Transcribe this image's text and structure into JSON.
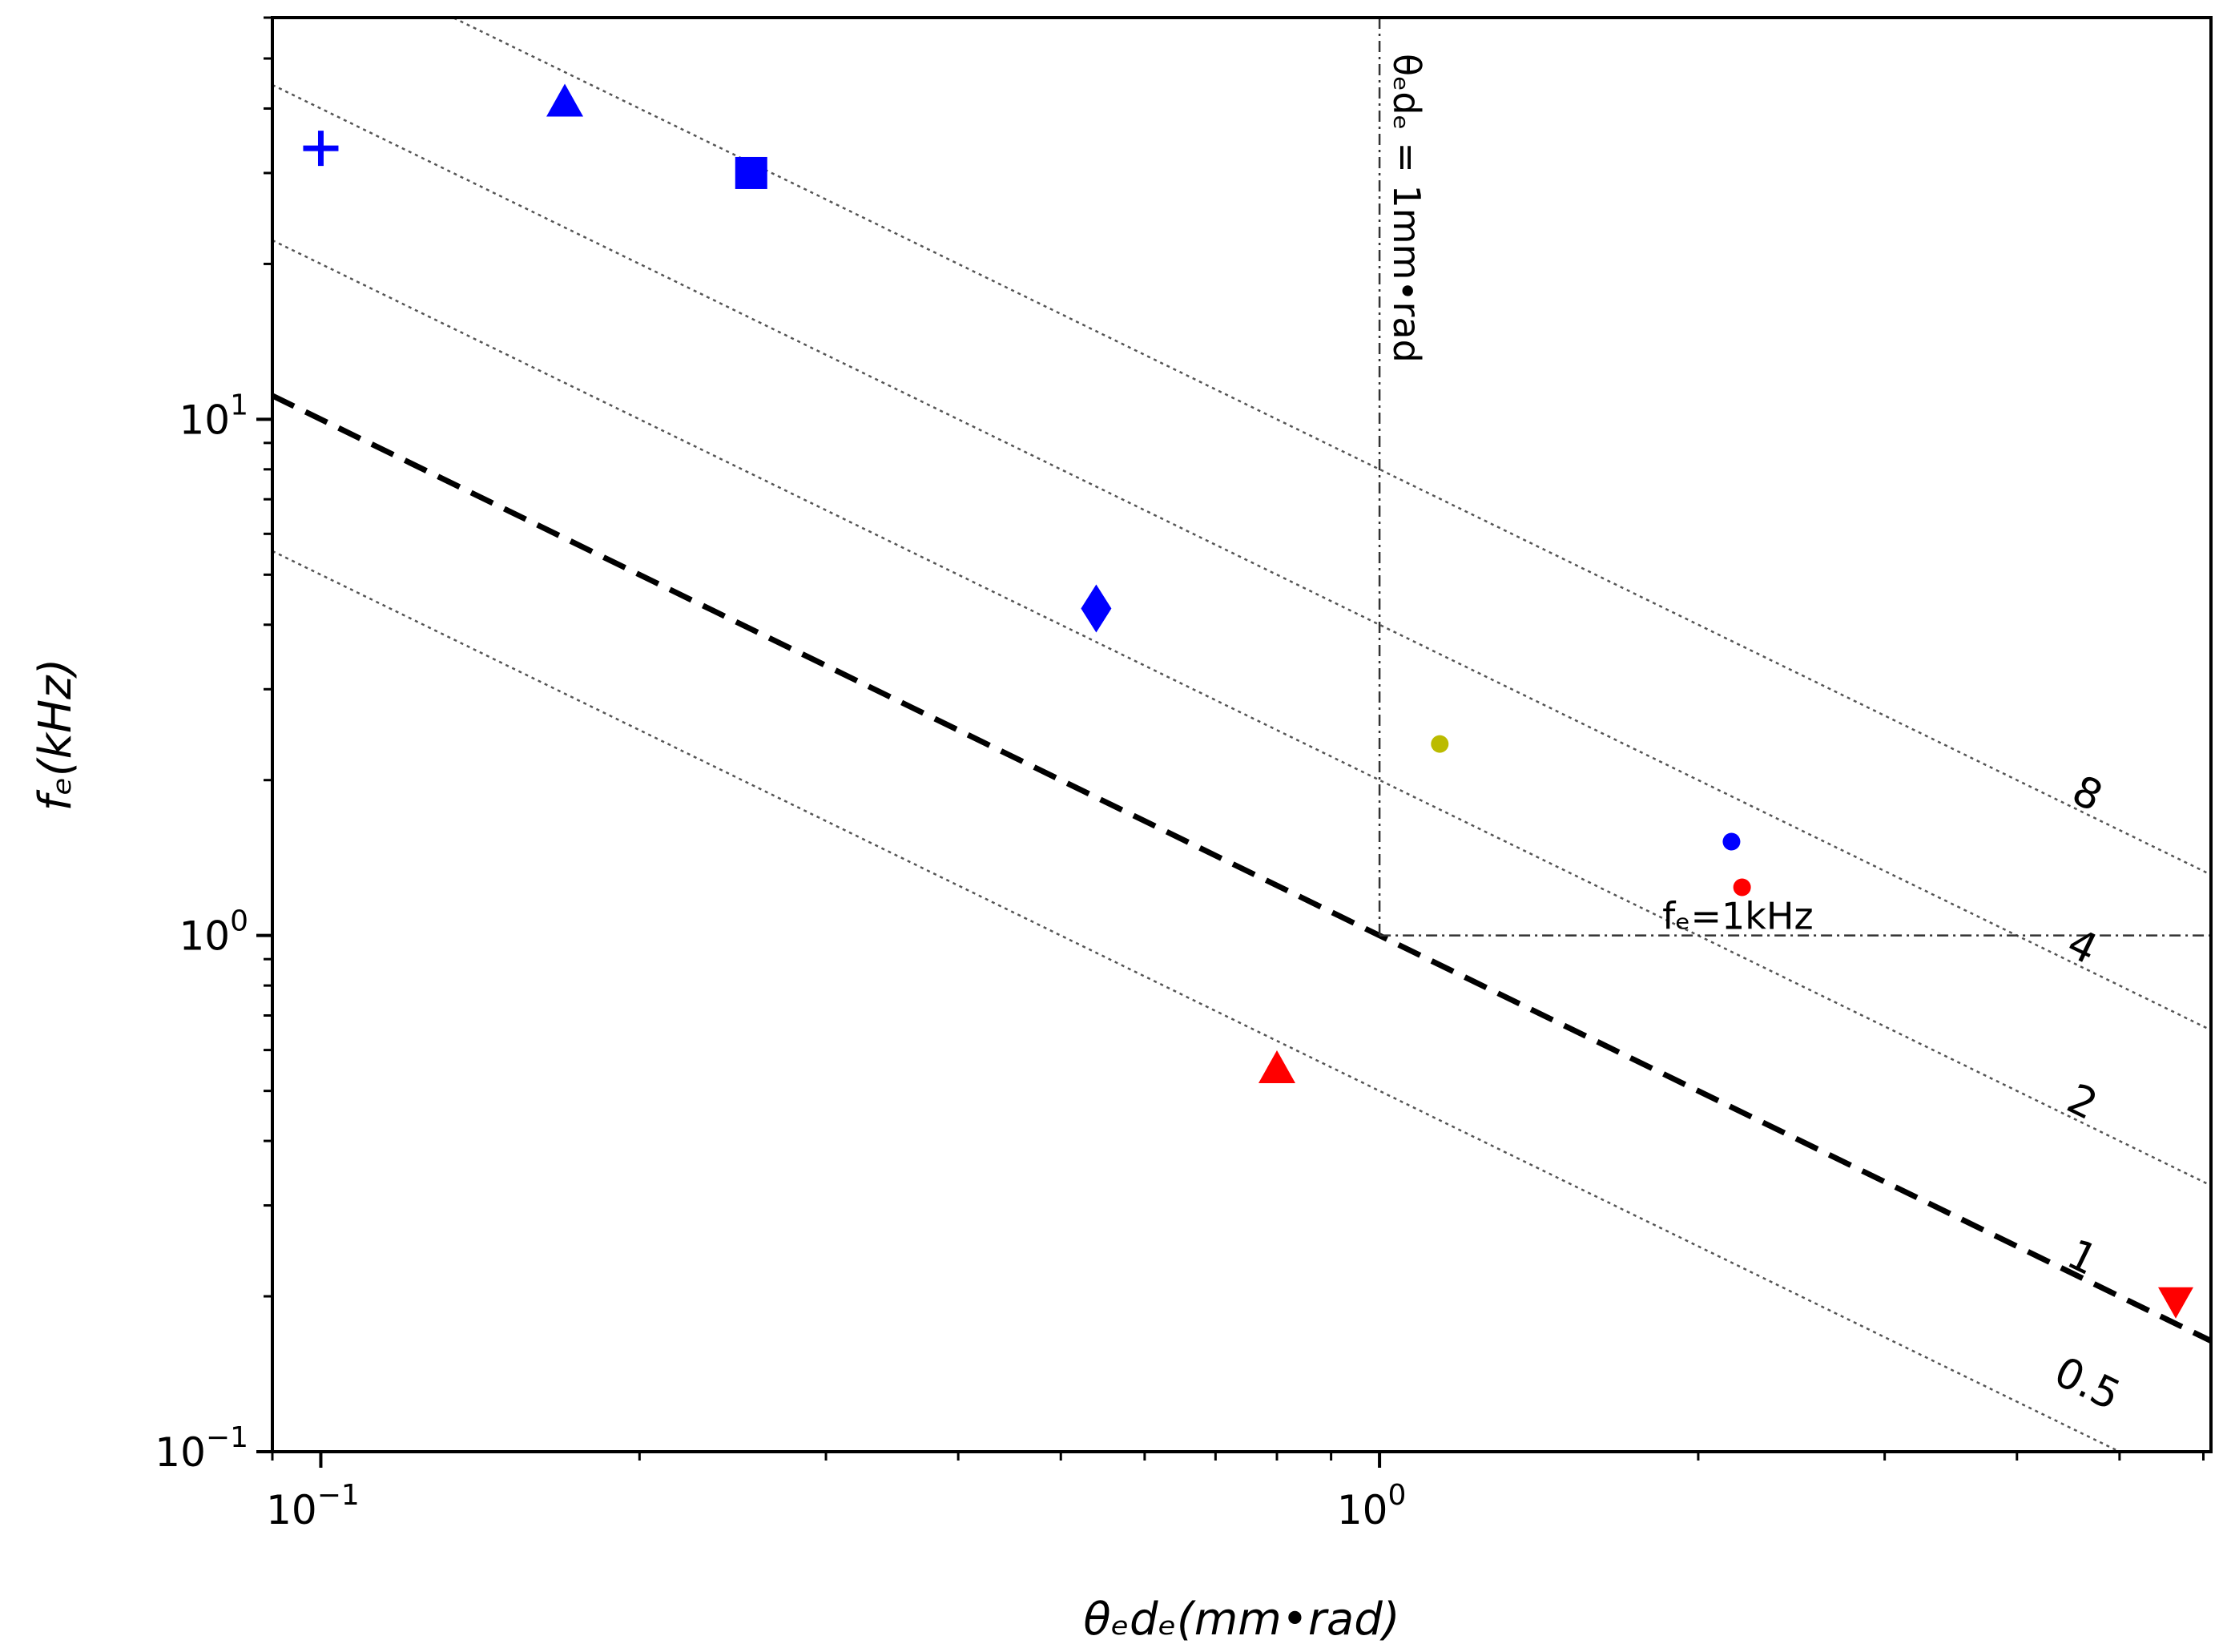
{
  "chart_data": {
    "type": "scatter",
    "xscale": "log",
    "yscale": "log",
    "xlim": [
      0.09,
      6.1
    ],
    "ylim": [
      0.1,
      60
    ],
    "xlabel": "θₑdₑ(mm•rad)",
    "ylabel": "fₑ(kHz)",
    "x_ticks": [
      {
        "value": 0.1,
        "base": "10",
        "exp": "−1"
      },
      {
        "value": 1,
        "base": "10",
        "exp": "0"
      }
    ],
    "y_ticks": [
      {
        "value": 0.1,
        "base": "10",
        "exp": "−1"
      },
      {
        "value": 1,
        "base": "10",
        "exp": "0"
      },
      {
        "value": 10,
        "base": "10",
        "exp": "1"
      }
    ],
    "contours": [
      {
        "label": "0.5",
        "k": 0.5,
        "style": "dotted",
        "label_x": 4.6,
        "label_y": 0.128
      },
      {
        "label": "1",
        "k": 1,
        "style": "dashed",
        "label_x": 4.55,
        "label_y": 0.225
      },
      {
        "label": "2",
        "k": 2,
        "style": "dotted",
        "label_x": 4.55,
        "label_y": 0.45
      },
      {
        "label": "4",
        "k": 4,
        "style": "dotted",
        "label_x": 4.55,
        "label_y": 0.9
      },
      {
        "label": "8",
        "k": 8,
        "style": "dotted",
        "label_x": 4.6,
        "label_y": 1.78
      }
    ],
    "reference_lines": [
      {
        "orientation": "vertical",
        "value": 1,
        "label": "θₑdₑ = 1mm•rad"
      },
      {
        "orientation": "horizontal",
        "value": 1,
        "label": "fₑ=1kHz"
      }
    ],
    "points": [
      {
        "x": 0.1,
        "y": 33.5,
        "marker": "plus",
        "color": "#0000ff"
      },
      {
        "x": 0.17,
        "y": 41,
        "marker": "triangle-up",
        "color": "#0000ff"
      },
      {
        "x": 0.255,
        "y": 30,
        "marker": "square",
        "color": "#0000ff"
      },
      {
        "x": 0.54,
        "y": 4.3,
        "marker": "diamond",
        "color": "#0000ff"
      },
      {
        "x": 1.14,
        "y": 2.35,
        "marker": "circle",
        "color": "#bbbb00"
      },
      {
        "x": 2.15,
        "y": 1.52,
        "marker": "circle",
        "color": "#0000ff"
      },
      {
        "x": 2.2,
        "y": 1.24,
        "marker": "circle",
        "color": "#ff0000"
      },
      {
        "x": 0.8,
        "y": 0.55,
        "marker": "triangle-up",
        "color": "#ff0000"
      },
      {
        "x": 5.65,
        "y": 0.196,
        "marker": "triangle-down",
        "color": "#ff0000"
      }
    ]
  }
}
